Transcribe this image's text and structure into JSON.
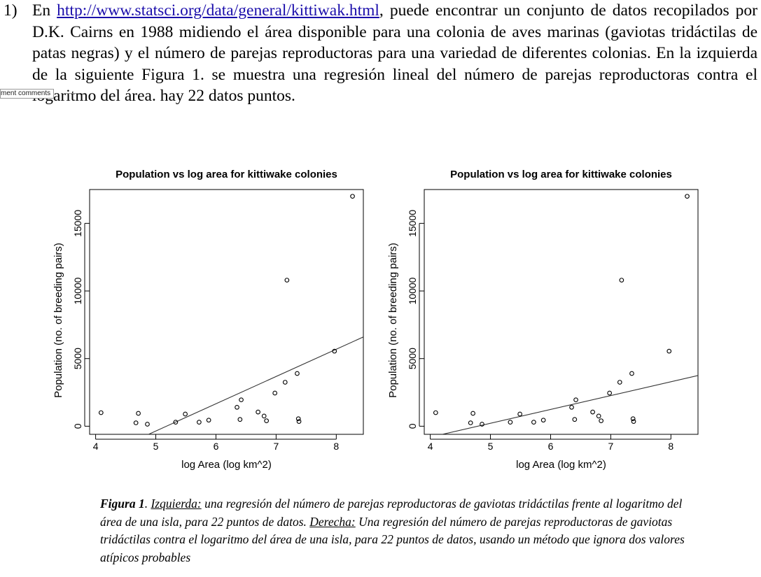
{
  "question": {
    "number": "1)",
    "text_before_link": "En ",
    "link": "http://www.statsci.org/data/general/kittiwak.html",
    "text_after_link": ", puede encontrar un conjunto de datos recopilados por D.K. Cairns en 1988 midiendo el área disponible para una colonia de aves marinas (gaviotas tridáctilas de patas negras) y el número de parejas reproductoras para una variedad de diferentes colonias. En la izquierda de la siguiente Figura 1. se muestra una regresión lineal del número de parejas reproductoras contra el logaritmo del área. hay 22 datos puntos."
  },
  "comment_tag": "ment comments",
  "chart_data": [
    {
      "type": "scatter",
      "title": "Population vs log area for kittiwake colonies",
      "xlabel": "log Area (log km^2)",
      "ylabel": "Population (no. of breeding pairs)",
      "xlim": [
        3.9,
        8.45
      ],
      "ylim": [
        -600,
        17500
      ],
      "xticks": [
        4,
        5,
        6,
        7,
        8
      ],
      "yticks": [
        0,
        5000,
        10000,
        15000
      ],
      "grid": false,
      "points": [
        [
          4.09,
          1000
        ],
        [
          4.67,
          250
        ],
        [
          4.71,
          950
        ],
        [
          4.86,
          150
        ],
        [
          5.33,
          300
        ],
        [
          5.49,
          900
        ],
        [
          5.72,
          300
        ],
        [
          5.88,
          450
        ],
        [
          6.35,
          1400
        ],
        [
          6.4,
          500
        ],
        [
          6.42,
          1950
        ],
        [
          6.7,
          1050
        ],
        [
          6.8,
          750
        ],
        [
          6.84,
          400
        ],
        [
          6.98,
          2450
        ],
        [
          7.15,
          3250
        ],
        [
          7.18,
          10800
        ],
        [
          7.35,
          3900
        ],
        [
          7.37,
          550
        ],
        [
          7.38,
          350
        ],
        [
          7.97,
          5550
        ],
        [
          8.27,
          17000
        ]
      ],
      "regression_line": {
        "x": [
          4.88,
          8.45
        ],
        "y": [
          -600,
          6600
        ]
      }
    },
    {
      "type": "scatter",
      "title": "Population vs log area for kittiwake colonies",
      "xlabel": "log Area (log km^2)",
      "ylabel": "Population (no. of breeding pairs)",
      "xlim": [
        3.9,
        8.45
      ],
      "ylim": [
        -600,
        17500
      ],
      "xticks": [
        4,
        5,
        6,
        7,
        8
      ],
      "yticks": [
        0,
        5000,
        10000,
        15000
      ],
      "grid": false,
      "points": [
        [
          4.09,
          1000
        ],
        [
          4.67,
          250
        ],
        [
          4.71,
          950
        ],
        [
          4.86,
          150
        ],
        [
          5.33,
          300
        ],
        [
          5.49,
          900
        ],
        [
          5.72,
          300
        ],
        [
          5.88,
          450
        ],
        [
          6.35,
          1400
        ],
        [
          6.4,
          500
        ],
        [
          6.42,
          1950
        ],
        [
          6.7,
          1050
        ],
        [
          6.8,
          750
        ],
        [
          6.84,
          400
        ],
        [
          6.98,
          2450
        ],
        [
          7.15,
          3250
        ],
        [
          7.18,
          10800
        ],
        [
          7.35,
          3900
        ],
        [
          7.37,
          550
        ],
        [
          7.38,
          350
        ],
        [
          7.97,
          5550
        ],
        [
          8.27,
          17000
        ]
      ],
      "regression_line": {
        "x": [
          4.2,
          8.45
        ],
        "y": [
          -600,
          3750
        ]
      }
    }
  ],
  "caption": {
    "fig_label": "Figura 1",
    "fig_punct": ". ",
    "left_label": "Izquierda:",
    "left_text": " una regresión del número de parejas reproductoras de gaviotas tridáctilas frente al logaritmo del área de una isla, para 22 puntos de datos. ",
    "right_label": "Derecha:",
    "right_text": " Una regresión del número de parejas reproductoras de gaviotas tridáctilas contra el logaritmo del área de una isla, para 22 puntos de datos, usando un método que ignora dos valores atípicos probables"
  }
}
